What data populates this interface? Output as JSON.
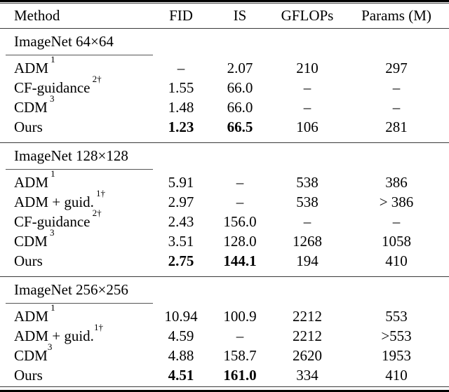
{
  "table": {
    "columns": [
      "Method",
      "FID",
      "IS",
      "GFLOPs",
      "Params (M)"
    ],
    "missing_marker": "–",
    "colors": {
      "background": "#ffffff",
      "text": "#000000",
      "rule_heavy": "#000000",
      "rule_light": "#3a3a3a",
      "rule_section_underline": "#555555"
    },
    "sections": [
      {
        "title": "ImageNet 64×64",
        "rows": [
          {
            "method": "ADM",
            "sup": "1",
            "sup_space": true,
            "fid": "–",
            "is": "2.07",
            "gflops": "210",
            "params": "297",
            "bold": false
          },
          {
            "method": "CF-guidance",
            "sup": "2†",
            "sup_space": true,
            "fid": "1.55",
            "is": "66.0",
            "gflops": "–",
            "params": "–",
            "bold": false
          },
          {
            "method": "CDM",
            "sup": "3",
            "sup_space": true,
            "fid": "1.48",
            "is": "66.0",
            "gflops": "–",
            "params": "–",
            "bold": false
          },
          {
            "method": "Ours",
            "sup": "",
            "sup_space": false,
            "fid": "1.23",
            "is": "66.5",
            "gflops": "106",
            "params": "281",
            "bold": true
          }
        ]
      },
      {
        "title": "ImageNet 128×128",
        "rows": [
          {
            "method": "ADM",
            "sup": "1",
            "sup_space": true,
            "fid": "5.91",
            "is": "–",
            "gflops": "538",
            "params": "386",
            "bold": false
          },
          {
            "method": "ADM + guid.",
            "sup": "1†",
            "sup_space": true,
            "fid": "2.97",
            "is": "–",
            "gflops": "538",
            "params": "> 386",
            "bold": false
          },
          {
            "method": "CF-guidance",
            "sup": "2†",
            "sup_space": true,
            "fid": "2.43",
            "is": "156.0",
            "gflops": "–",
            "params": "–",
            "bold": false
          },
          {
            "method": "CDM",
            "sup": "3",
            "sup_space": true,
            "fid": "3.51",
            "is": "128.0",
            "gflops": "1268",
            "params": "1058",
            "bold": false
          },
          {
            "method": "Ours",
            "sup": "",
            "sup_space": false,
            "fid": "2.75",
            "is": "144.1",
            "gflops": "194",
            "params": "410",
            "bold": true
          }
        ]
      },
      {
        "title": "ImageNet 256×256",
        "rows": [
          {
            "method": "ADM",
            "sup": "1",
            "sup_space": true,
            "fid": "10.94",
            "is": "100.9",
            "gflops": "2212",
            "params": "553",
            "bold": false
          },
          {
            "method": "ADM + guid.",
            "sup": "1†",
            "sup_space": false,
            "fid": "4.59",
            "is": "–",
            "gflops": "2212",
            "params": ">553",
            "bold": false
          },
          {
            "method": "CDM",
            "sup": "3",
            "sup_space": false,
            "fid": "4.88",
            "is": "158.7",
            "gflops": "2620",
            "params": "1953",
            "bold": false
          },
          {
            "method": "Ours",
            "sup": "",
            "sup_space": false,
            "fid": "4.51",
            "is": "161.0",
            "gflops": "334",
            "params": "410",
            "bold": true
          }
        ]
      }
    ]
  }
}
